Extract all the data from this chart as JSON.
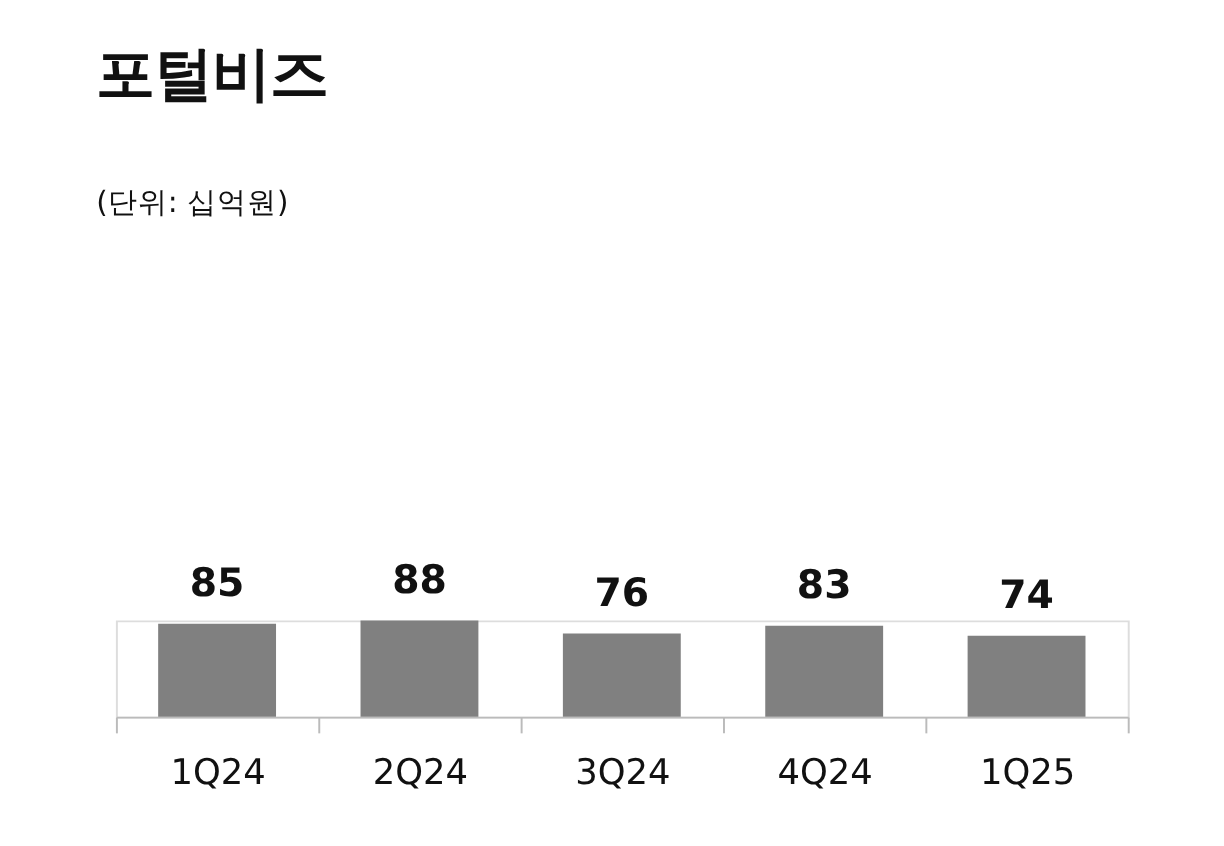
{
  "chart_data": {
    "type": "bar",
    "title": "포털비즈",
    "subtitle": "(단위: 십억원)",
    "categories": [
      "1Q24",
      "2Q24",
      "3Q24",
      "4Q24",
      "1Q25"
    ],
    "values": [
      85,
      88,
      76,
      83,
      74
    ],
    "color": "#808080",
    "data_labels": true,
    "grid": false
  }
}
